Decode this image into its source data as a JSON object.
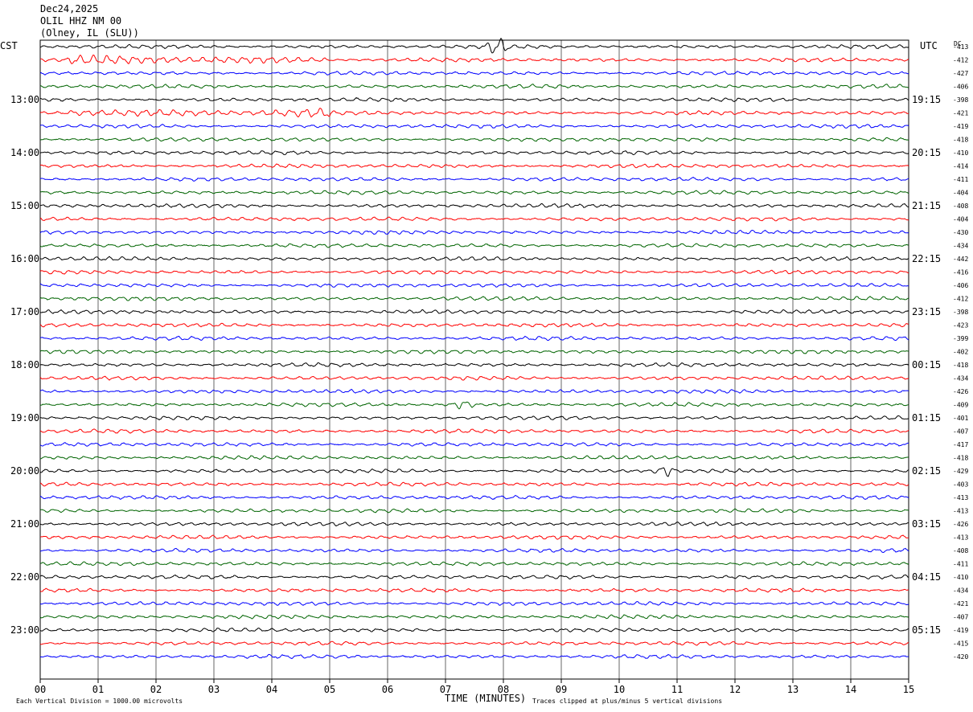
{
  "header": {
    "date": "Dec24,2025",
    "station": "OLIL HHZ NM 00",
    "location": "(Olney, IL (SLU))"
  },
  "labels": {
    "left_tz": "CST",
    "right_tz": "UTC",
    "dc_header": "DC",
    "x_axis_title": "TIME (MINUTES)",
    "scale_note": "Each Vertical Division = 1000.00 microvolts",
    "clip_note": "Traces clipped at plus/minus 5 vertical divisions"
  },
  "colors": {
    "trace_cycle": [
      "#000000",
      "#ff0000",
      "#0000ff",
      "#006400"
    ],
    "grid": "#000000"
  },
  "chart_data": {
    "type": "line",
    "title": "OLIL HHZ NM 00",
    "xlabel": "TIME (MINUTES)",
    "x_ticks": [
      "00",
      "01",
      "02",
      "03",
      "04",
      "05",
      "06",
      "07",
      "08",
      "09",
      "10",
      "11",
      "12",
      "13",
      "14",
      "15"
    ],
    "xlim": [
      0,
      15
    ],
    "traces_per_hour": 4,
    "left_hour_labels": [
      {
        "row": 4,
        "label": "13:00"
      },
      {
        "row": 8,
        "label": "14:00"
      },
      {
        "row": 12,
        "label": "15:00"
      },
      {
        "row": 16,
        "label": "16:00"
      },
      {
        "row": 20,
        "label": "17:00"
      },
      {
        "row": 24,
        "label": "18:00"
      },
      {
        "row": 28,
        "label": "19:00"
      },
      {
        "row": 32,
        "label": "20:00"
      },
      {
        "row": 36,
        "label": "21:00"
      },
      {
        "row": 40,
        "label": "22:00"
      },
      {
        "row": 44,
        "label": "23:00"
      }
    ],
    "right_hour_labels": [
      {
        "row": 4,
        "label": "19:15"
      },
      {
        "row": 8,
        "label": "20:15"
      },
      {
        "row": 12,
        "label": "21:15"
      },
      {
        "row": 16,
        "label": "22:15"
      },
      {
        "row": 20,
        "label": "23:15"
      },
      {
        "row": 24,
        "label": "00:15"
      },
      {
        "row": 28,
        "label": "01:15"
      },
      {
        "row": 32,
        "label": "02:15"
      },
      {
        "row": 36,
        "label": "03:15"
      },
      {
        "row": 40,
        "label": "04:15"
      },
      {
        "row": 44,
        "label": "05:15"
      }
    ],
    "dc_offsets": [
      "-413",
      "-412",
      "-427",
      "-406",
      "-398",
      "-421",
      "-419",
      "-418",
      "-410",
      "-414",
      "-411",
      "-404",
      "-408",
      "-404",
      "-430",
      "-434",
      "-442",
      "-416",
      "-406",
      "-412",
      "-398",
      "-423",
      "-399",
      "-402",
      "-418",
      "-434",
      "-426",
      "-409",
      "-401",
      "-407",
      "-417",
      "-418",
      "-429",
      "-403",
      "-413",
      "-413",
      "-426",
      "-413",
      "-408",
      "-411",
      "-410",
      "-434",
      "-421",
      "-407",
      "-419",
      "-415",
      "-420"
    ],
    "events": [
      {
        "row": 0,
        "minute": 7.9,
        "amplitude": 2.2
      },
      {
        "row": 1,
        "minute_start": 0.5,
        "minute_end": 5.0,
        "amplitude": 1.4
      },
      {
        "row": 5,
        "minute_start": 0.5,
        "minute_end": 5.0,
        "amplitude": 1.6
      },
      {
        "row": 27,
        "minute": 7.3,
        "amplitude": 1.8
      },
      {
        "row": 32,
        "minute": 10.8,
        "amplitude": 2.0
      }
    ]
  }
}
